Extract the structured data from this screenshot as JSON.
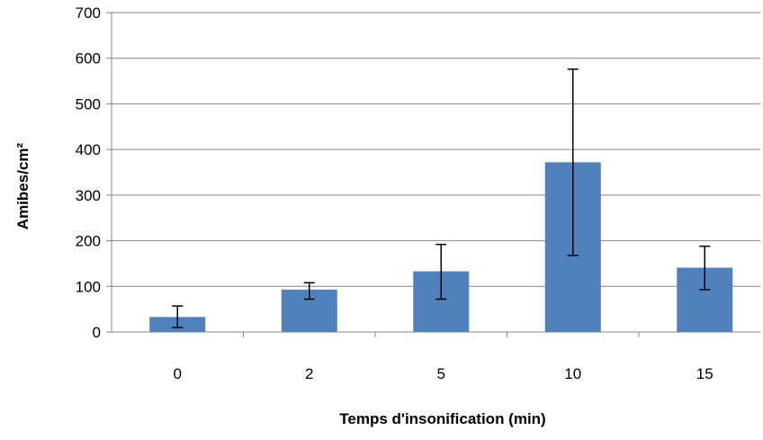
{
  "chart_data": {
    "type": "bar",
    "title": "",
    "xlabel": "Temps d'insonification  (min)",
    "ylabel": "Amibes/cm²",
    "categories": [
      "0",
      "2",
      "5",
      "10",
      "15"
    ],
    "values": [
      33,
      93,
      133,
      372,
      141
    ],
    "error_low": [
      10,
      72,
      72,
      168,
      93
    ],
    "error_high": [
      57,
      108,
      192,
      576,
      188
    ],
    "ylim": [
      0,
      700
    ],
    "yticks": [
      "0",
      "100",
      "200",
      "300",
      "400",
      "500",
      "600",
      "700"
    ],
    "grid": true,
    "legend": "none",
    "colors": {
      "bar": "#4f81bd",
      "grid": "#868686",
      "axis": "#868686",
      "error": "#000000"
    }
  }
}
